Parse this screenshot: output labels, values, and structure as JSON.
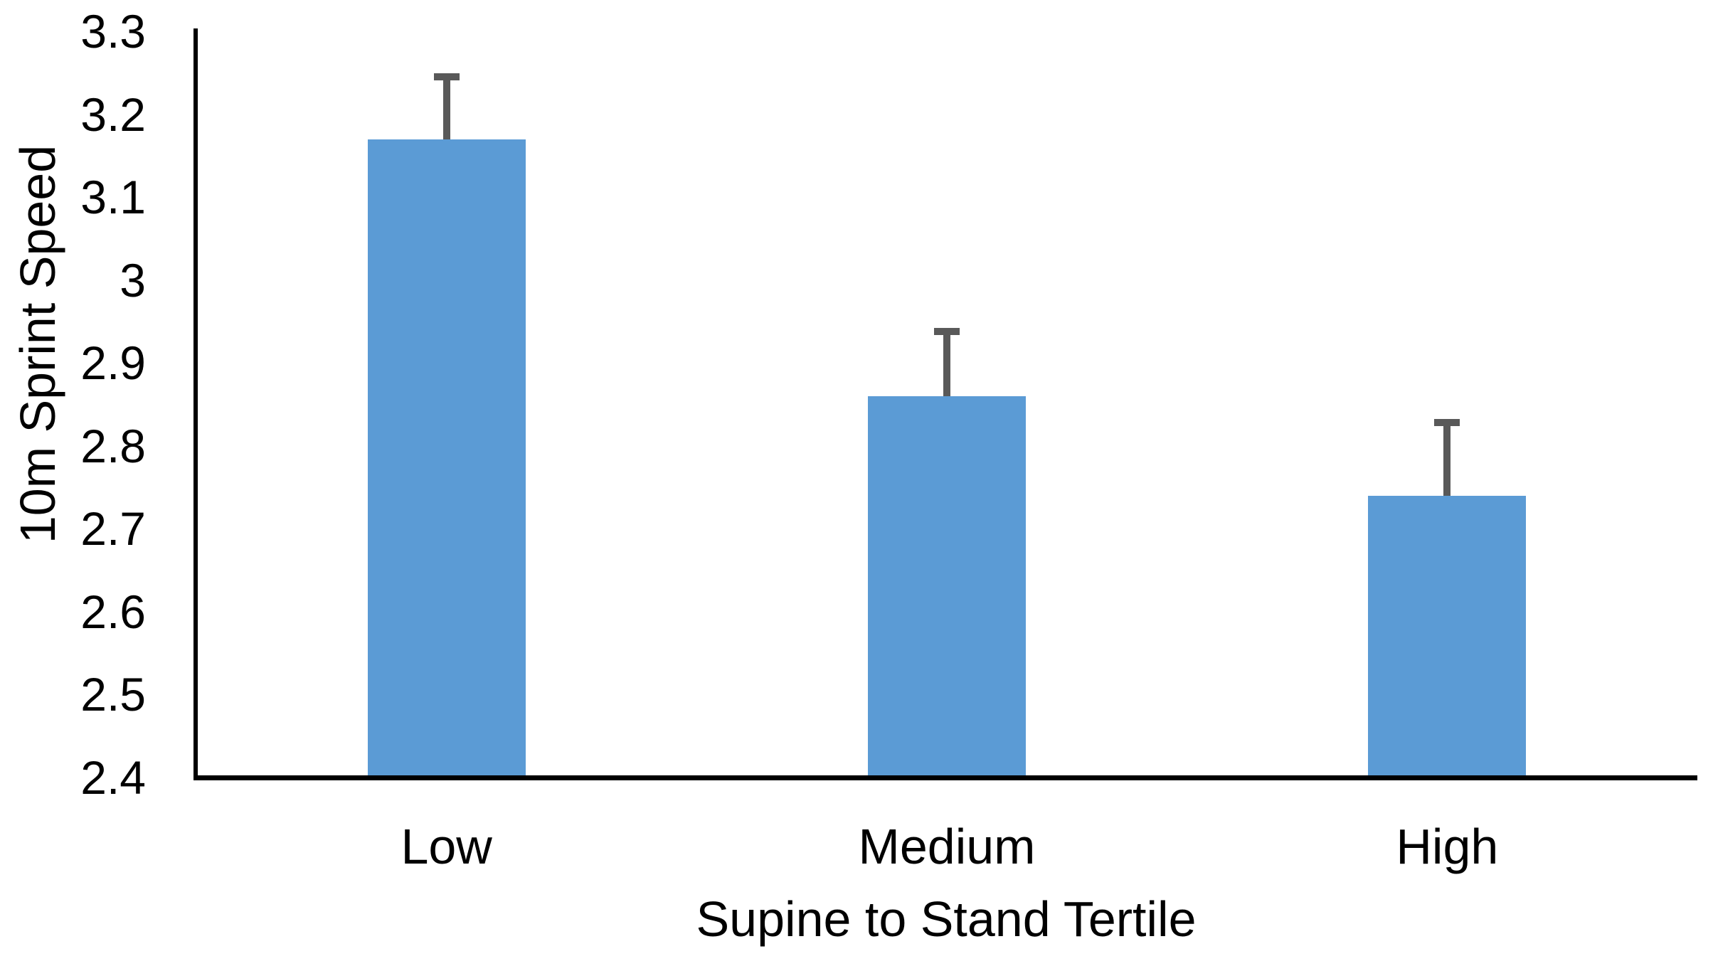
{
  "chart_data": {
    "type": "bar",
    "title": "",
    "xlabel": "Supine to Stand Tertile",
    "ylabel": "10m Sprint Speed",
    "categories": [
      "Low",
      "Medium",
      "High"
    ],
    "values": [
      3.17,
      2.86,
      2.74
    ],
    "error_upper": [
      0.075,
      0.078,
      0.088
    ],
    "ylim": [
      2.4,
      3.3
    ],
    "ytick_step": 0.1,
    "yticks": [
      "3.3",
      "3.2",
      "3.1",
      "3",
      "2.9",
      "2.8",
      "2.7",
      "2.6",
      "2.5",
      "2.4"
    ],
    "grid": false,
    "legend": false,
    "bar_color": "#5B9BD5",
    "error_bar_color": "#595959",
    "axis_color": "#000000",
    "text_color": "#000000",
    "background": "#FFFFFF"
  }
}
